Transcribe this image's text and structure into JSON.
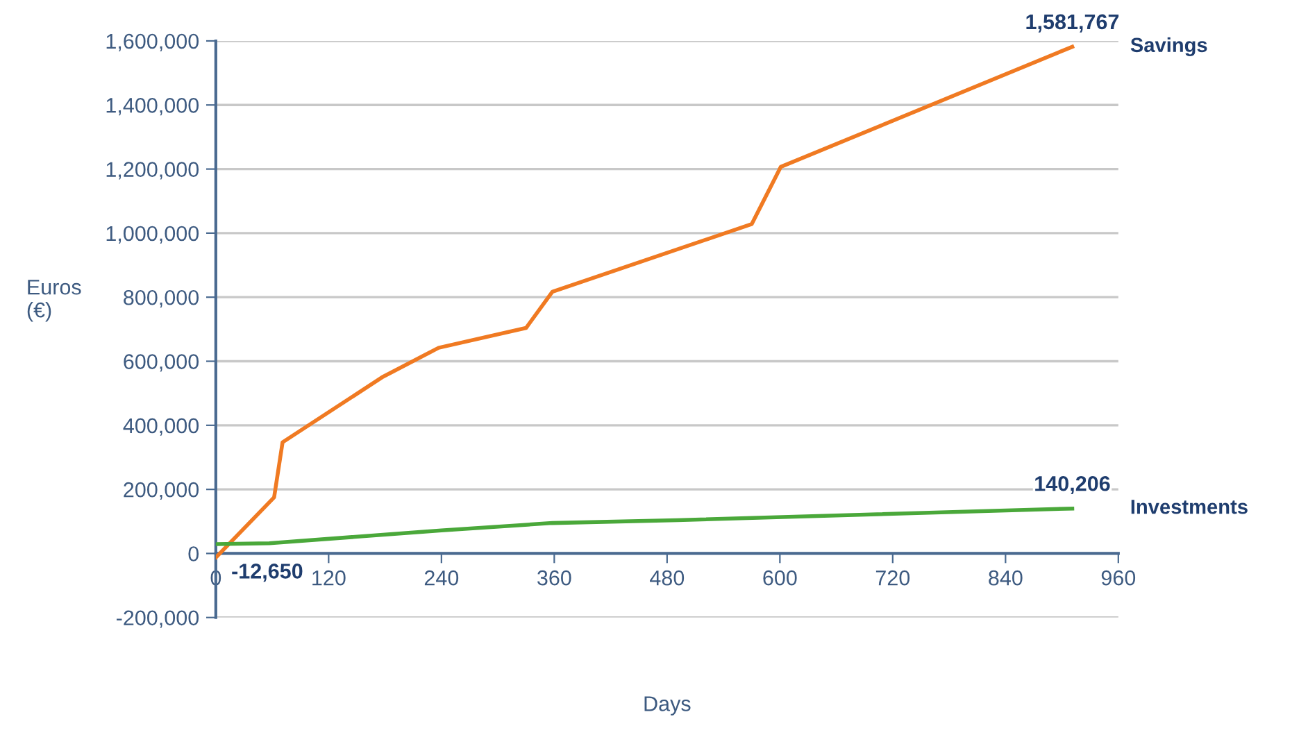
{
  "chart_data": {
    "type": "line",
    "xlabel": "Days",
    "ylabel": "Euros\n(€)",
    "xlim": [
      0,
      960
    ],
    "xticks": [
      0,
      120,
      240,
      360,
      480,
      600,
      720,
      840,
      960
    ],
    "ylim": [
      -200000,
      1600000
    ],
    "yticks": [
      {
        "value": -200000,
        "label": "-200,000"
      },
      {
        "value": 0,
        "label": "0"
      },
      {
        "value": 200000,
        "label": "200,000"
      },
      {
        "value": 400000,
        "label": "400,000"
      },
      {
        "value": 600000,
        "label": "600,000"
      },
      {
        "value": 800000,
        "label": "800,000"
      },
      {
        "value": 1000000,
        "label": "1,000,000"
      },
      {
        "value": 1200000,
        "label": "1,200,000"
      },
      {
        "value": 1400000,
        "label": "1,400,000"
      },
      {
        "value": 1600000,
        "label": "1,600,000"
      }
    ],
    "grid": "y",
    "legend": false,
    "marker": "none",
    "line_style": "solid",
    "series": [
      {
        "name": "Savings",
        "color": "#f07a22",
        "x": [
          0,
          62,
          71,
          178,
          237,
          330,
          358,
          570,
          601,
          911
        ],
        "values": [
          -12650,
          175000,
          347000,
          552000,
          642000,
          704000,
          817000,
          1028000,
          1207000,
          1581767
        ],
        "value_labels": [
          "-12,650",
          null,
          null,
          null,
          null,
          null,
          null,
          null,
          null,
          "1,581,767"
        ]
      },
      {
        "name": "Investments",
        "color": "#4aa83a",
        "x": [
          0,
          57,
          240,
          358,
          491,
          911
        ],
        "values": [
          29000,
          32000,
          72000,
          95000,
          104000,
          140206
        ],
        "value_labels": [
          null,
          null,
          null,
          null,
          null,
          "140,206"
        ]
      }
    ]
  }
}
